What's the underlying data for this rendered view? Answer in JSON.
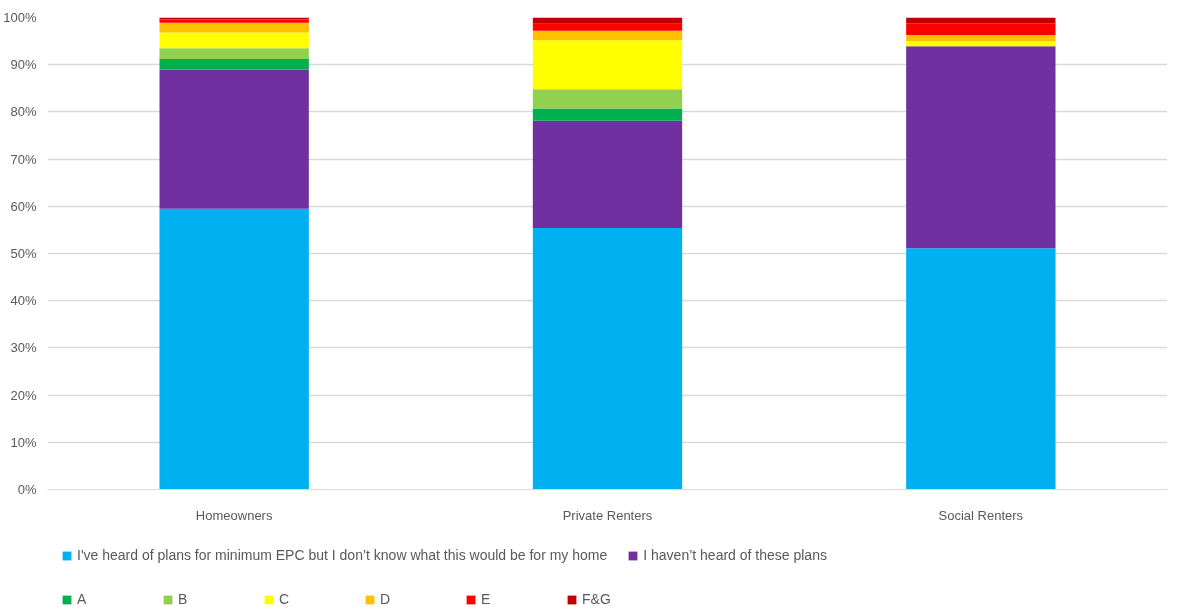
{
  "chart_data": {
    "type": "bar",
    "stacked": true,
    "categories": [
      "Homeowners",
      "Private Renters",
      "Social Renters"
    ],
    "series": [
      {
        "name": "I've heard of plans for minimum EPC but I don’t know what this would be for my home",
        "color": "#00b0f0",
        "values": [
          59.5,
          55.4,
          51.1
        ]
      },
      {
        "name": "I haven’t heard of these plans",
        "color": "#7030a0",
        "values": [
          29.5,
          22.7,
          42.8
        ]
      },
      {
        "name": "A",
        "color": "#00b050",
        "values": [
          2.2,
          2.6,
          0
        ]
      },
      {
        "name": "B",
        "color": "#92d050",
        "values": [
          2.3,
          4.1,
          0
        ]
      },
      {
        "name": "C",
        "color": "#ffff00",
        "values": [
          3.3,
          10.4,
          1.1
        ]
      },
      {
        "name": "D",
        "color": "#ffc000",
        "values": [
          2.1,
          2.0,
          1.3
        ]
      },
      {
        "name": "E",
        "color": "#ff0000",
        "values": [
          0.7,
          1.5,
          2.5
        ]
      },
      {
        "name": "F&G",
        "color": "#c00000",
        "values": [
          0.4,
          1.3,
          1.2
        ]
      }
    ],
    "ylim": [
      0,
      100
    ],
    "yticks": [
      {
        "value": 0,
        "label": "0%"
      },
      {
        "value": 10,
        "label": "10%"
      },
      {
        "value": 20,
        "label": "20%"
      },
      {
        "value": 30,
        "label": "30%"
      },
      {
        "value": 40,
        "label": "40%"
      },
      {
        "value": 50,
        "label": "50%"
      },
      {
        "value": 60,
        "label": "60%"
      },
      {
        "value": 70,
        "label": "70%"
      },
      {
        "value": 80,
        "label": "80%"
      },
      {
        "value": 90,
        "label": "90%"
      },
      {
        "value": 100,
        "label": "100%"
      }
    ],
    "grid": "y",
    "legend": "bottom"
  }
}
